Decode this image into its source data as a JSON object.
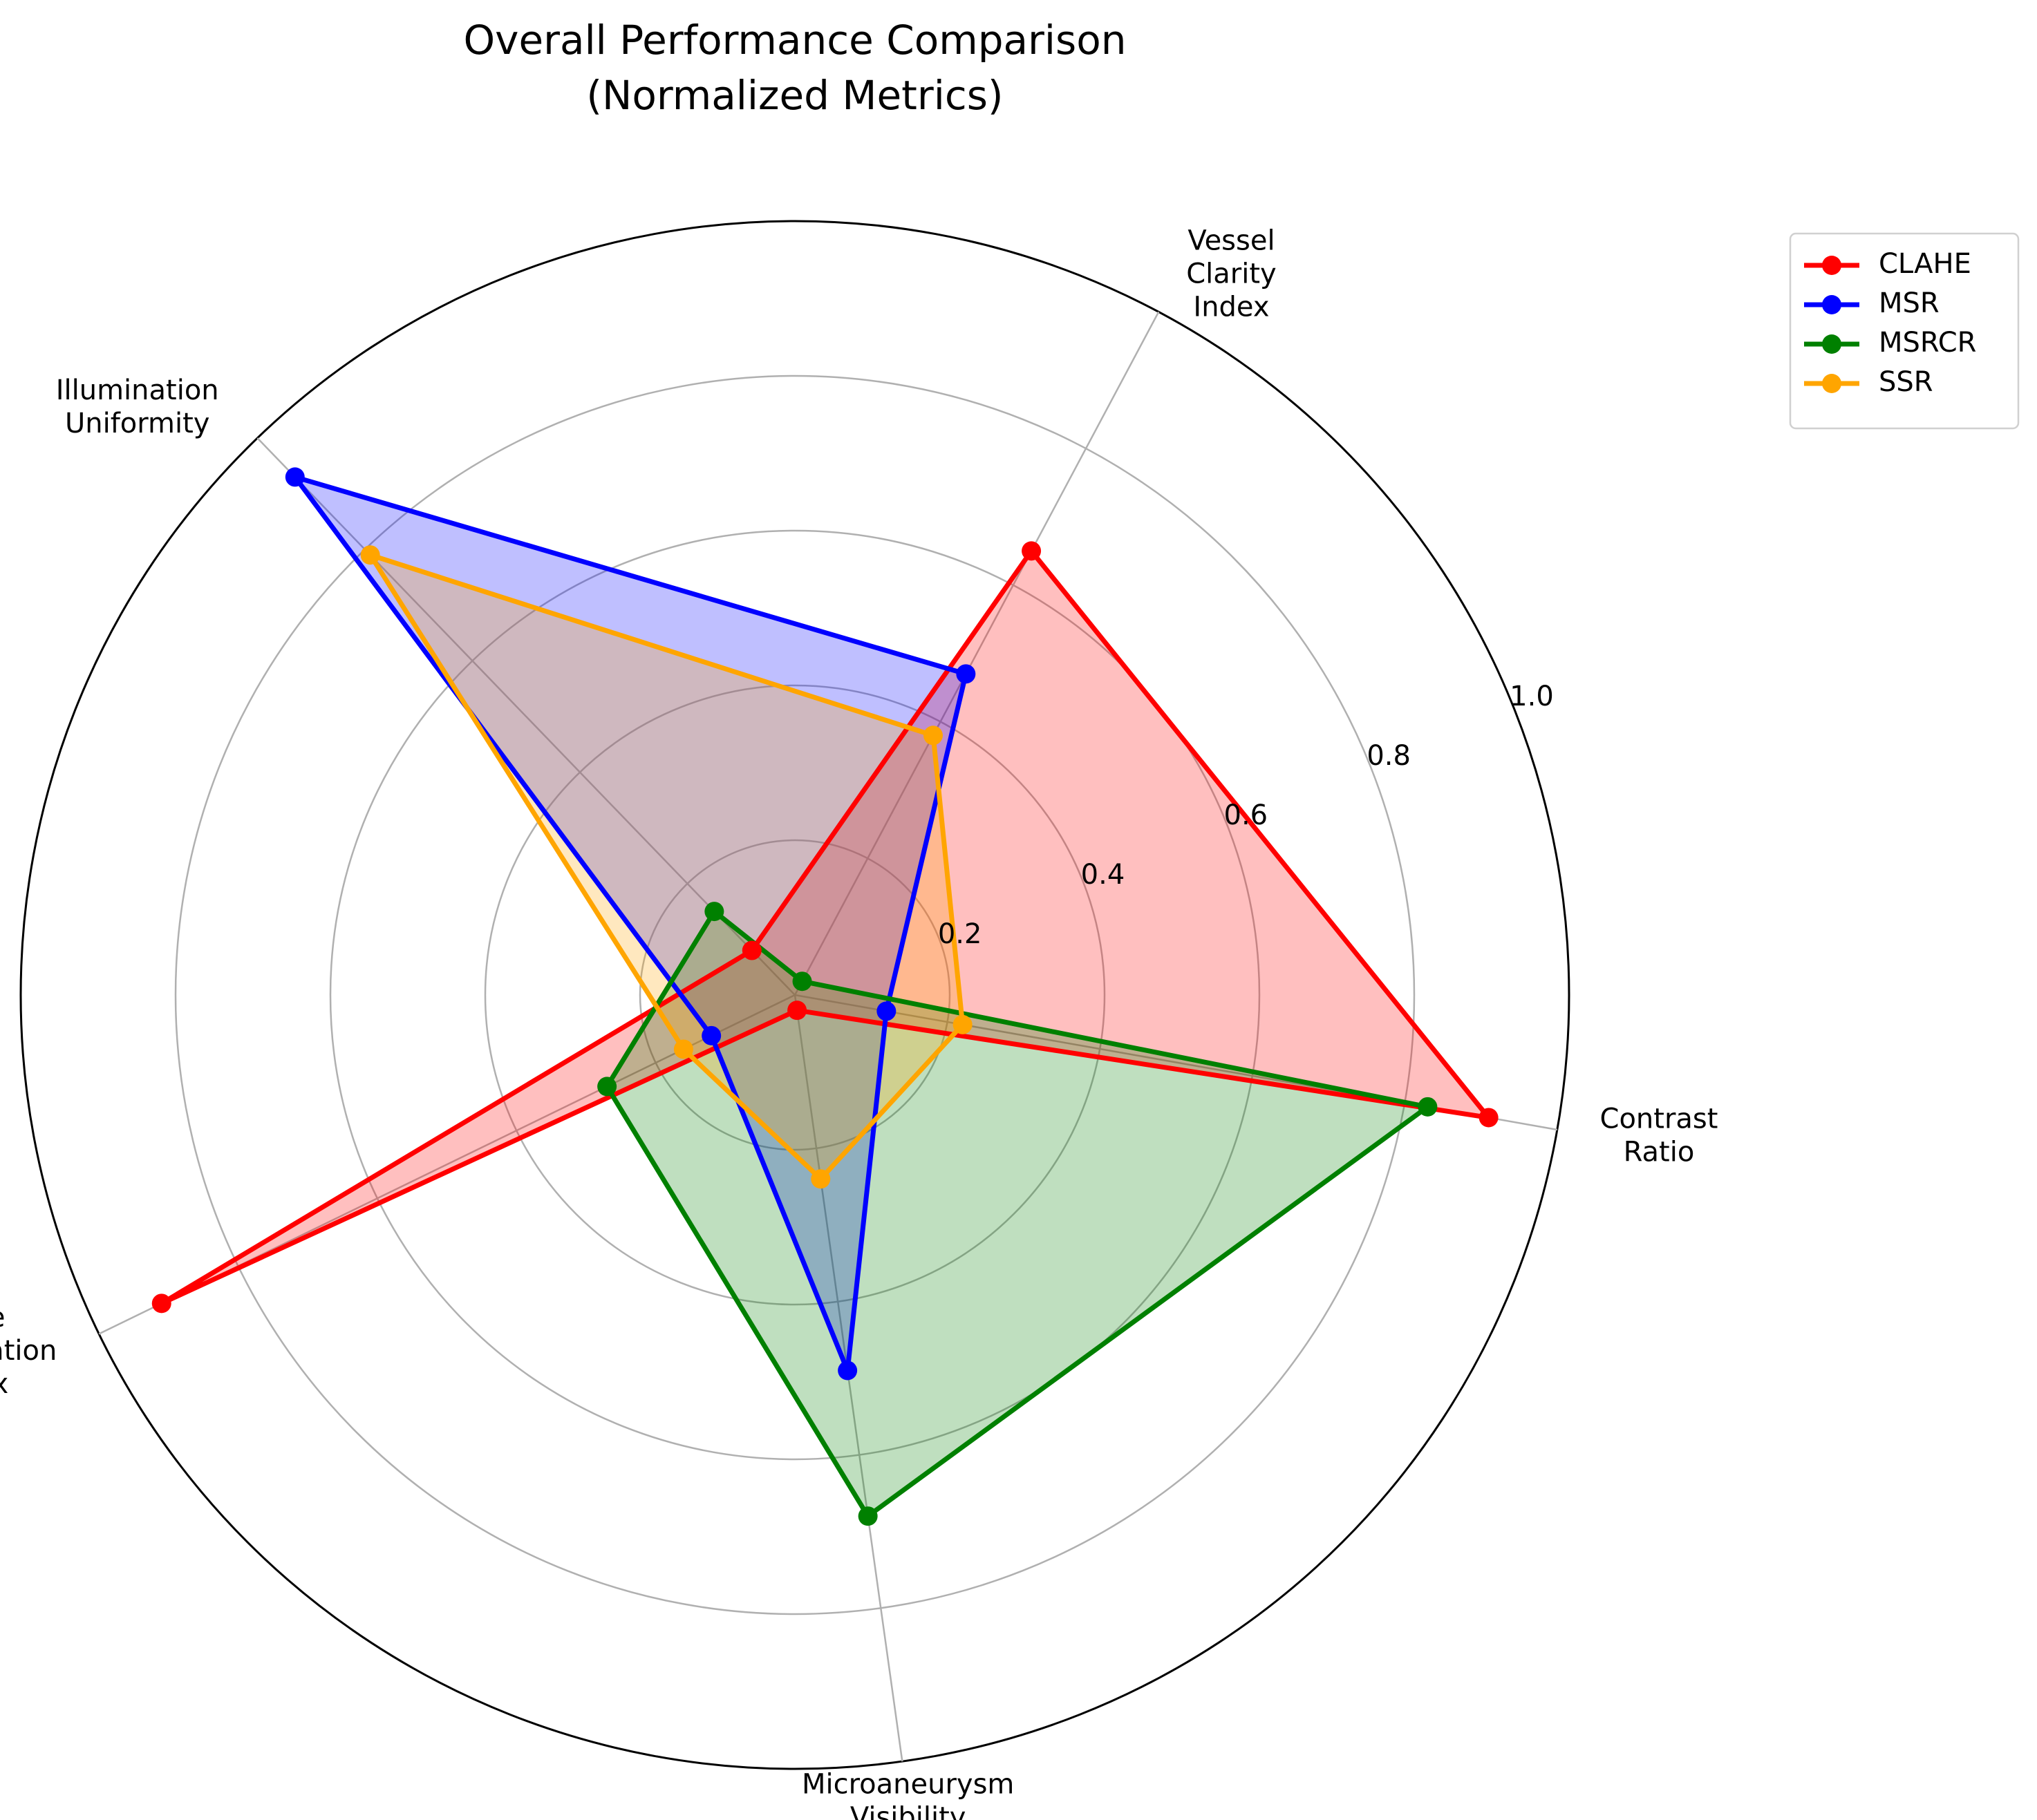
{
  "chart_data": {
    "type": "radar",
    "title_lines": [
      "Overall Performance Comparison",
      "(Normalized Metrics)"
    ],
    "axes": [
      {
        "lines": [
          "Contrast",
          "Ratio"
        ]
      },
      {
        "lines": [
          "Vessel",
          "Clarity",
          "Index"
        ]
      },
      {
        "lines": [
          "Illumination",
          "Uniformity"
        ]
      },
      {
        "lines": [
          "Edge",
          "Preservation",
          "Index"
        ]
      },
      {
        "lines": [
          "Microaneurysm",
          "Visibility"
        ]
      }
    ],
    "radial_ticks": [
      "0.2",
      "0.4",
      "0.6",
      "0.8",
      "1.0"
    ],
    "radial_tick_values": [
      0.2,
      0.4,
      0.6,
      0.8,
      1.0
    ],
    "rlim": [
      0,
      1.0
    ],
    "grid": true,
    "legend_position": "upper-right-outside",
    "series": [
      {
        "name": "CLAHE",
        "color": "#ff0000",
        "values": [
          0.91,
          0.65,
          0.08,
          0.91,
          0.02
        ]
      },
      {
        "name": "MSR",
        "color": "#0000ff",
        "values": [
          0.12,
          0.47,
          0.93,
          0.12,
          0.49
        ]
      },
      {
        "name": "MSRCR",
        "color": "#008000",
        "values": [
          0.83,
          0.02,
          0.15,
          0.27,
          0.68
        ]
      },
      {
        "name": "SSR",
        "color": "#ffa500",
        "values": [
          0.22,
          0.38,
          0.79,
          0.16,
          0.24
        ]
      }
    ]
  }
}
